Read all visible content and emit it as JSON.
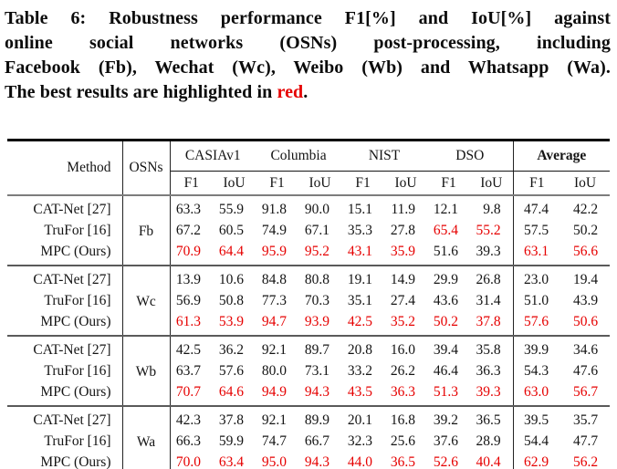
{
  "caption": {
    "line1": "Table 6: Robustness performance F1[%] and IoU[%] against",
    "line2": "online social networks (OSNs) post-processing, including",
    "line3": "Facebook (Fb), Wechat (Wc), Weibo (Wb) and Whatsapp (Wa).",
    "line4_prefix": "The best results are highlighted in ",
    "line4_red": "red",
    "line4_suffix": "."
  },
  "colors": {
    "highlight_red": "#e60000",
    "rule_black": "#000000",
    "rule_gray": "#7d7d7d",
    "text": "#141414"
  },
  "table": {
    "header": {
      "method": "Method",
      "osns": "OSNs",
      "datasets": [
        "CASIAv1",
        "Columbia",
        "NIST",
        "DSO"
      ],
      "average": "Average",
      "metrics": [
        "F1",
        "IoU"
      ]
    },
    "groups": [
      {
        "osn": "Fb",
        "rows": [
          {
            "method": "CAT-Net [27]",
            "values": [
              "63.3",
              "55.9",
              "91.8",
              "90.0",
              "15.1",
              "11.9",
              "12.1",
              "9.8",
              "47.4",
              "42.2"
            ],
            "red": []
          },
          {
            "method": "TruFor [16]",
            "values": [
              "67.2",
              "60.5",
              "74.9",
              "67.1",
              "35.3",
              "27.8",
              "65.4",
              "55.2",
              "57.5",
              "50.2"
            ],
            "red": [
              6,
              7
            ]
          },
          {
            "method": "MPC (Ours)",
            "values": [
              "70.9",
              "64.4",
              "95.9",
              "95.2",
              "43.1",
              "35.9",
              "51.6",
              "39.3",
              "63.1",
              "56.6"
            ],
            "red": [
              0,
              1,
              2,
              3,
              4,
              5,
              8,
              9
            ]
          }
        ]
      },
      {
        "osn": "Wc",
        "rows": [
          {
            "method": "CAT-Net [27]",
            "values": [
              "13.9",
              "10.6",
              "84.8",
              "80.8",
              "19.1",
              "14.9",
              "29.9",
              "26.8",
              "23.0",
              "19.4"
            ],
            "red": []
          },
          {
            "method": "TruFor [16]",
            "values": [
              "56.9",
              "50.8",
              "77.3",
              "70.3",
              "35.1",
              "27.4",
              "43.6",
              "31.4",
              "51.0",
              "43.9"
            ],
            "red": []
          },
          {
            "method": "MPC (Ours)",
            "values": [
              "61.3",
              "53.9",
              "94.7",
              "93.9",
              "42.5",
              "35.2",
              "50.2",
              "37.8",
              "57.6",
              "50.6"
            ],
            "red": [
              0,
              1,
              2,
              3,
              4,
              5,
              6,
              7,
              8,
              9
            ]
          }
        ]
      },
      {
        "osn": "Wb",
        "rows": [
          {
            "method": "CAT-Net [27]",
            "values": [
              "42.5",
              "36.2",
              "92.1",
              "89.7",
              "20.8",
              "16.0",
              "39.4",
              "35.8",
              "39.9",
              "34.6"
            ],
            "red": []
          },
          {
            "method": "TruFor [16]",
            "values": [
              "63.7",
              "57.6",
              "80.0",
              "73.1",
              "33.2",
              "26.2",
              "46.4",
              "36.3",
              "54.3",
              "47.6"
            ],
            "red": []
          },
          {
            "method": "MPC (Ours)",
            "values": [
              "70.7",
              "64.6",
              "94.9",
              "94.3",
              "43.5",
              "36.3",
              "51.3",
              "39.3",
              "63.0",
              "56.7"
            ],
            "red": [
              0,
              1,
              2,
              3,
              4,
              5,
              6,
              7,
              8,
              9
            ]
          }
        ]
      },
      {
        "osn": "Wa",
        "rows": [
          {
            "method": "CAT-Net [27]",
            "values": [
              "42.3",
              "37.8",
              "92.1",
              "89.9",
              "20.1",
              "16.8",
              "39.2",
              "36.5",
              "39.5",
              "35.7"
            ],
            "red": []
          },
          {
            "method": "TruFor [16]",
            "values": [
              "66.3",
              "59.9",
              "74.7",
              "66.7",
              "32.3",
              "25.6",
              "37.6",
              "28.9",
              "54.4",
              "47.7"
            ],
            "red": []
          },
          {
            "method": "MPC (Ours)",
            "values": [
              "70.0",
              "63.4",
              "95.0",
              "94.3",
              "44.0",
              "36.5",
              "52.6",
              "40.4",
              "62.9",
              "56.2"
            ],
            "red": [
              0,
              1,
              2,
              3,
              4,
              5,
              6,
              7,
              8,
              9
            ]
          }
        ]
      }
    ]
  }
}
